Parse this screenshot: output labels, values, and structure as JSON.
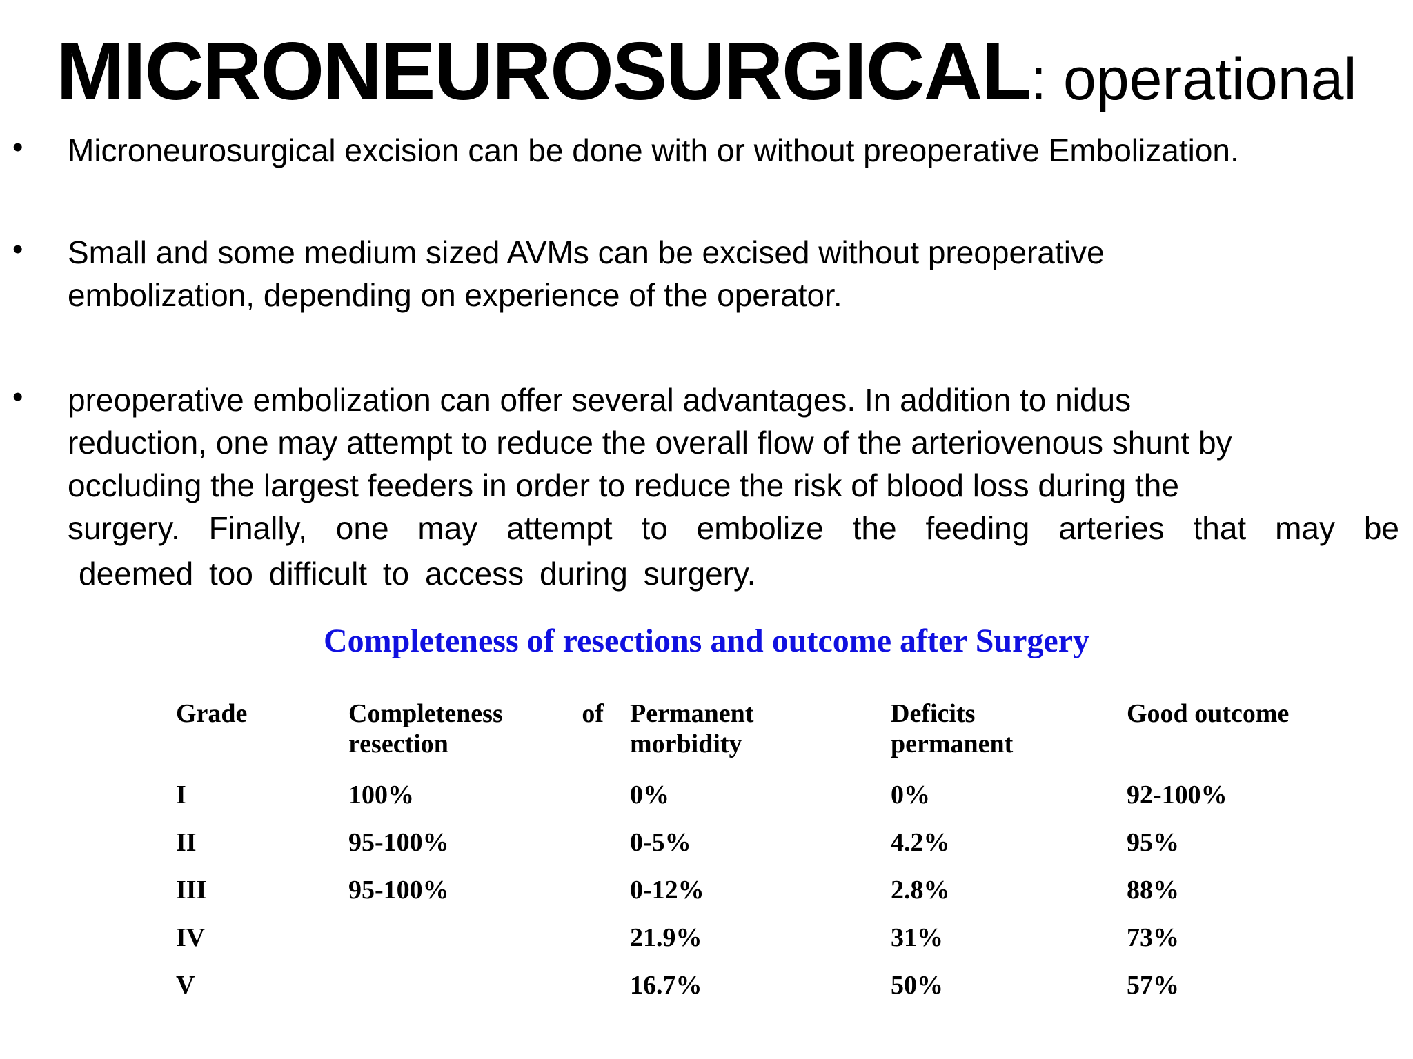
{
  "title": {
    "main": "MICRONEUROSURGICAL",
    "sub": ": operational"
  },
  "bullets": [
    {
      "lines": [
        "Microneurosurgical excision can be done with or without preoperative Embolization."
      ]
    },
    {
      "lines": [
        "Small and some medium sized AVMs can be excised without preoperative",
        "embolization, depending on experience of the operator."
      ]
    },
    {
      "lines": [
        "preoperative embolization can offer several advantages. In addition to nidus",
        "reduction, one may attempt to reduce the overall flow of the arteriovenous shunt by",
        "occluding the largest feeders in order to reduce the risk of blood loss during the",
        "surgery. Finally, one may attempt to embolize the feeding arteries that may be",
        "deemed too difficult to access during surgery."
      ],
      "justified_words": [
        "surgery.",
        "Finally,",
        "one",
        "may",
        "attempt",
        "to",
        "embolize",
        "the",
        "feeding",
        "arteries",
        "that",
        "may",
        "be"
      ]
    }
  ],
  "table": {
    "title": "Completeness of resections and outcome after Surgery",
    "headers": {
      "grade": "Grade",
      "completeness_line1_a": "Completeness",
      "completeness_line1_b": "of",
      "completeness_line2": "resection",
      "morbidity_line1": "Permanent",
      "morbidity_line2": "morbidity",
      "deficits_line1": "Deficits",
      "deficits_line2": "permanent",
      "outcome": "Good outcome"
    },
    "rows": [
      {
        "grade": "I",
        "completeness": "100%",
        "morbidity": "0%",
        "deficits": "0%",
        "outcome": "92-100%"
      },
      {
        "grade": "II",
        "completeness": "95-100%",
        "morbidity": "0-5%",
        "deficits": "4.2%",
        "outcome": "95%"
      },
      {
        "grade": "III",
        "completeness": "95-100%",
        "morbidity": "0-12%",
        "deficits": "2.8%",
        "outcome": "88%"
      },
      {
        "grade": "IV",
        "completeness": "",
        "morbidity": "21.9%",
        "deficits": "31%",
        "outcome": "73%"
      },
      {
        "grade": "V",
        "completeness": "",
        "morbidity": "16.7%",
        "deficits": "50%",
        "outcome": "57%"
      }
    ]
  }
}
